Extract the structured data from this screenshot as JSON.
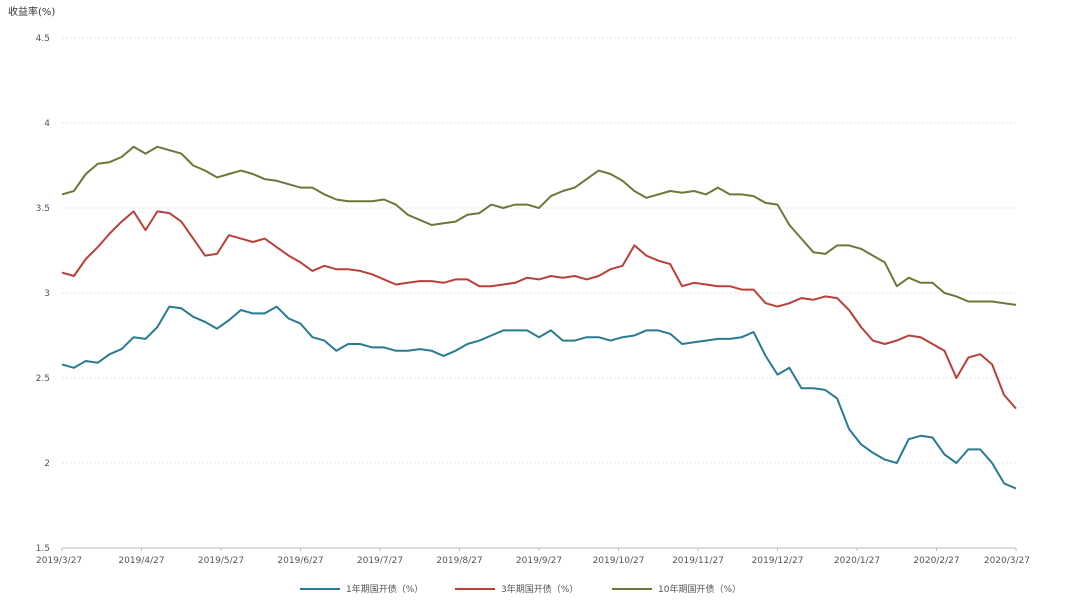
{
  "chart_data": {
    "type": "line",
    "ylabel": "收益率(%)",
    "ylim": [
      1.5,
      4.5
    ],
    "yticks": [
      "1.5",
      "2",
      "2.5",
      "3",
      "3.5",
      "4",
      "4.5"
    ],
    "grid": true,
    "legend_position": "bottom",
    "x_labels": [
      "2019/3/27",
      "2019/4/27",
      "2019/5/27",
      "2019/6/27",
      "2019/7/27",
      "2019/8/27",
      "2019/9/27",
      "2019/10/27",
      "2019/11/27",
      "2019/12/27",
      "2020/1/27",
      "2020/2/27",
      "2020/3/27"
    ],
    "series": [
      {
        "name": "1年期国开债（%）",
        "color": "#2a7a92",
        "values": [
          2.58,
          2.56,
          2.6,
          2.59,
          2.64,
          2.67,
          2.74,
          2.73,
          2.8,
          2.92,
          2.91,
          2.86,
          2.83,
          2.79,
          2.84,
          2.9,
          2.88,
          2.88,
          2.92,
          2.85,
          2.82,
          2.74,
          2.72,
          2.66,
          2.7,
          2.7,
          2.68,
          2.68,
          2.66,
          2.66,
          2.67,
          2.66,
          2.63,
          2.66,
          2.7,
          2.72,
          2.75,
          2.78,
          2.78,
          2.78,
          2.74,
          2.78,
          2.72,
          2.72,
          2.74,
          2.74,
          2.72,
          2.74,
          2.75,
          2.78,
          2.78,
          2.76,
          2.7,
          2.71,
          2.72,
          2.73,
          2.73,
          2.74,
          2.77,
          2.63,
          2.52,
          2.56,
          2.44,
          2.44,
          2.43,
          2.38,
          2.2,
          2.11,
          2.06,
          2.02,
          2.0,
          2.14,
          2.16,
          2.15,
          2.05,
          2.0,
          2.08,
          2.08,
          2.0,
          1.88,
          1.85
        ]
      },
      {
        "name": "3年期国开债（%）",
        "color": "#b8403a",
        "values": [
          3.12,
          3.1,
          3.2,
          3.27,
          3.35,
          3.42,
          3.48,
          3.37,
          3.48,
          3.47,
          3.42,
          3.32,
          3.22,
          3.23,
          3.34,
          3.32,
          3.3,
          3.32,
          3.27,
          3.22,
          3.18,
          3.13,
          3.16,
          3.14,
          3.14,
          3.13,
          3.11,
          3.08,
          3.05,
          3.06,
          3.07,
          3.07,
          3.06,
          3.08,
          3.08,
          3.04,
          3.04,
          3.05,
          3.06,
          3.09,
          3.08,
          3.1,
          3.09,
          3.1,
          3.08,
          3.1,
          3.14,
          3.16,
          3.28,
          3.22,
          3.19,
          3.17,
          3.04,
          3.06,
          3.05,
          3.04,
          3.04,
          3.02,
          3.02,
          2.94,
          2.92,
          2.94,
          2.97,
          2.96,
          2.98,
          2.97,
          2.9,
          2.8,
          2.72,
          2.7,
          2.72,
          2.75,
          2.74,
          2.7,
          2.66,
          2.5,
          2.62,
          2.64,
          2.58,
          2.4,
          2.32
        ]
      },
      {
        "name": "10年期国开债（%）",
        "color": "#6f7738",
        "values": [
          3.58,
          3.6,
          3.7,
          3.76,
          3.77,
          3.8,
          3.86,
          3.82,
          3.86,
          3.84,
          3.82,
          3.75,
          3.72,
          3.68,
          3.7,
          3.72,
          3.7,
          3.67,
          3.66,
          3.64,
          3.62,
          3.62,
          3.58,
          3.55,
          3.54,
          3.54,
          3.54,
          3.55,
          3.52,
          3.46,
          3.43,
          3.4,
          3.41,
          3.42,
          3.46,
          3.47,
          3.52,
          3.5,
          3.52,
          3.52,
          3.5,
          3.57,
          3.6,
          3.62,
          3.67,
          3.72,
          3.7,
          3.66,
          3.6,
          3.56,
          3.58,
          3.6,
          3.59,
          3.6,
          3.58,
          3.62,
          3.58,
          3.58,
          3.57,
          3.53,
          3.52,
          3.4,
          3.32,
          3.24,
          3.23,
          3.28,
          3.28,
          3.26,
          3.22,
          3.18,
          3.04,
          3.09,
          3.06,
          3.06,
          3.0,
          2.98,
          2.95,
          2.95,
          2.95,
          2.94,
          2.93
        ]
      }
    ]
  }
}
